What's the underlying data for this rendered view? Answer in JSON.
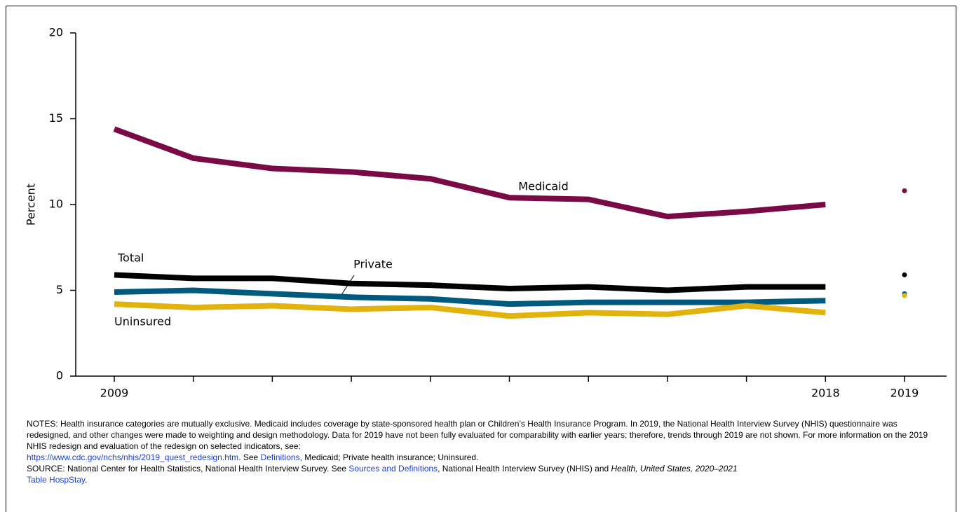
{
  "chart_data": {
    "type": "line",
    "y_label": "Percent",
    "categories": [
      "2009",
      null,
      null,
      null,
      null,
      null,
      null,
      null,
      null,
      "2018",
      "2019"
    ],
    "unconnected_last_point": true,
    "ylim": [
      0,
      20
    ],
    "yticks": [
      0,
      5,
      10,
      15,
      20
    ],
    "series": [
      {
        "name": "Medicaid",
        "color": "#7a0a45",
        "values": [
          14.4,
          12.7,
          12.1,
          11.9,
          11.5,
          10.4,
          10.3,
          9.3,
          9.6,
          10.0,
          10.8
        ]
      },
      {
        "name": "Total",
        "color": "#000000",
        "values": [
          5.9,
          5.7,
          5.7,
          5.4,
          5.3,
          5.1,
          5.2,
          5.0,
          5.2,
          5.2,
          5.9
        ]
      },
      {
        "name": "Private",
        "color": "#005a7e",
        "values": [
          4.9,
          5.0,
          4.8,
          4.6,
          4.5,
          4.2,
          4.3,
          4.3,
          4.3,
          4.4,
          4.8
        ]
      },
      {
        "name": "Uninsured",
        "color": "#e2b30c",
        "values": [
          4.2,
          4.0,
          4.1,
          3.9,
          4.0,
          3.5,
          3.7,
          3.6,
          4.1,
          3.7,
          4.7
        ]
      }
    ]
  },
  "notes": [
    "NOTES: Health insurance categories are mutually exclusive. Medicaid includes coverage by state-sponsored health plan or Children’s Health Insurance Program. In 2019, the National Health Interview Survey (NHIS) questionnaire was redesigned, and other changes were made to weighting and design methodology. Data for 2019 have not been fully evaluated for comparability with earlier years; therefore, trends through 2019 are not shown. For more information on the 2019 NHIS redesign and evaluation of the redesign on selected indicators, see:",
    "https://www.cdc.gov/nchs/nhis/2019_quest_redesign.htm",
    ". See ",
    "Definitions",
    ", Medicaid; Private health insurance; Uninsured."
  ],
  "source": [
    "SOURCE: National Center for Health Statistics, National Health Interview Survey. See ",
    "Sources and Definitions",
    ", National Health Interview Survey (NHIS) and ",
    "Health, United States, 2020–2021",
    "Table HospStay",
    "."
  ]
}
